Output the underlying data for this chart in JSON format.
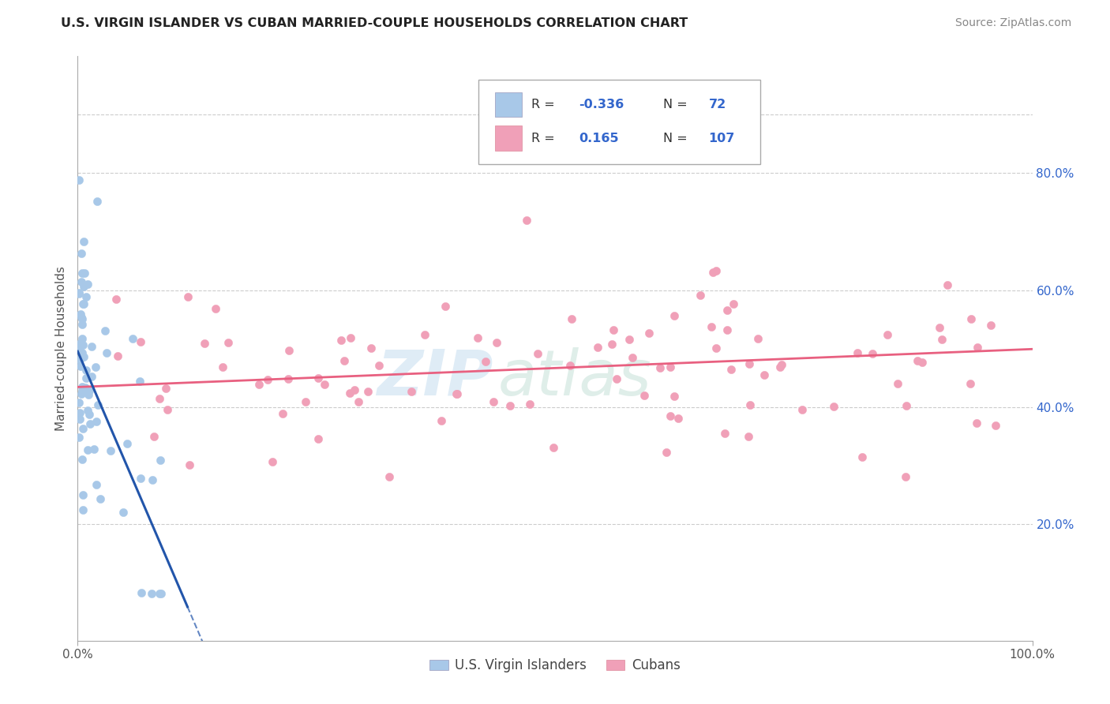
{
  "title": "U.S. VIRGIN ISLANDER VS CUBAN MARRIED-COUPLE HOUSEHOLDS CORRELATION CHART",
  "source": "Source: ZipAtlas.com",
  "ylabel": "Married-couple Households",
  "legend_label1": "U.S. Virgin Islanders",
  "legend_label2": "Cubans",
  "R1": "-0.336",
  "N1": "72",
  "R2": "0.165",
  "N2": "107",
  "color_blue": "#a8c8e8",
  "color_pink": "#f0a0b8",
  "color_blue_line": "#2255aa",
  "color_pink_line": "#e86080",
  "color_blue_text": "#3366cc",
  "color_gray_text": "#555555",
  "color_grid": "#cccccc",
  "xlim": [
    0.0,
    1.0
  ],
  "ylim": [
    0.0,
    1.0
  ],
  "y_ticks": [
    0.2,
    0.4,
    0.6,
    0.8
  ],
  "y_tick_labels": [
    "20.0%",
    "40.0%",
    "60.0%",
    "80.0%"
  ],
  "blue_line_x0": 0.0,
  "blue_line_y0": 0.495,
  "blue_line_slope": -3.8,
  "blue_line_solid_end": 0.115,
  "blue_line_dash_end": 0.2,
  "pink_line_x0": 0.0,
  "pink_line_y0": 0.434,
  "pink_line_slope": 0.065,
  "pink_line_x1": 1.0,
  "watermark_zip_color": "#c5ddf0",
  "watermark_atlas_color": "#c5e0d8",
  "watermark_alpha": 0.55
}
